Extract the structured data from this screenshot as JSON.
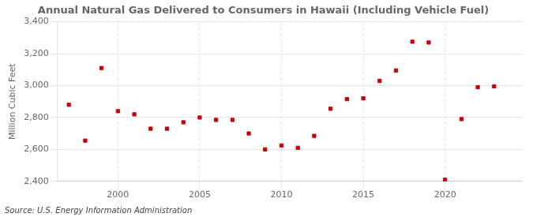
{
  "chart_data": {
    "type": "scatter",
    "title": "Annual Natural Gas Delivered to Consumers in Hawaii (Including Vehicle Fuel)",
    "ylabel": "Million Cubic Feet",
    "annotations": [
      "Source: U.S. Energy Information Administration"
    ],
    "x": [
      1997,
      1998,
      1999,
      2000,
      2001,
      2002,
      2003,
      2004,
      2005,
      2006,
      2007,
      2008,
      2009,
      2010,
      2011,
      2012,
      2013,
      2014,
      2015,
      2016,
      2017,
      2018,
      2019,
      2020,
      2021,
      2022,
      2023
    ],
    "values": [
      2880,
      2655,
      3110,
      2840,
      2820,
      2730,
      2730,
      2770,
      2800,
      2785,
      2785,
      2700,
      2600,
      2625,
      2610,
      2685,
      2855,
      2915,
      2920,
      3030,
      3095,
      3275,
      3270,
      2410,
      2790,
      2990,
      2995
    ],
    "color": "#cc0000",
    "marker": "square",
    "xlim": [
      1996.3,
      2024.7
    ],
    "xticks": [
      2000,
      2005,
      2010,
      2015,
      2020
    ],
    "ylim": [
      2400,
      3400
    ],
    "yticks": [
      {
        "value": 2400,
        "label": "2,400"
      },
      {
        "value": 2600,
        "label": "2,600"
      },
      {
        "value": 2800,
        "label": "2,800"
      },
      {
        "value": 3000,
        "label": "3,000"
      },
      {
        "value": 3200,
        "label": "3,200"
      },
      {
        "value": 3400,
        "label": "3,400"
      }
    ],
    "grid": true
  }
}
